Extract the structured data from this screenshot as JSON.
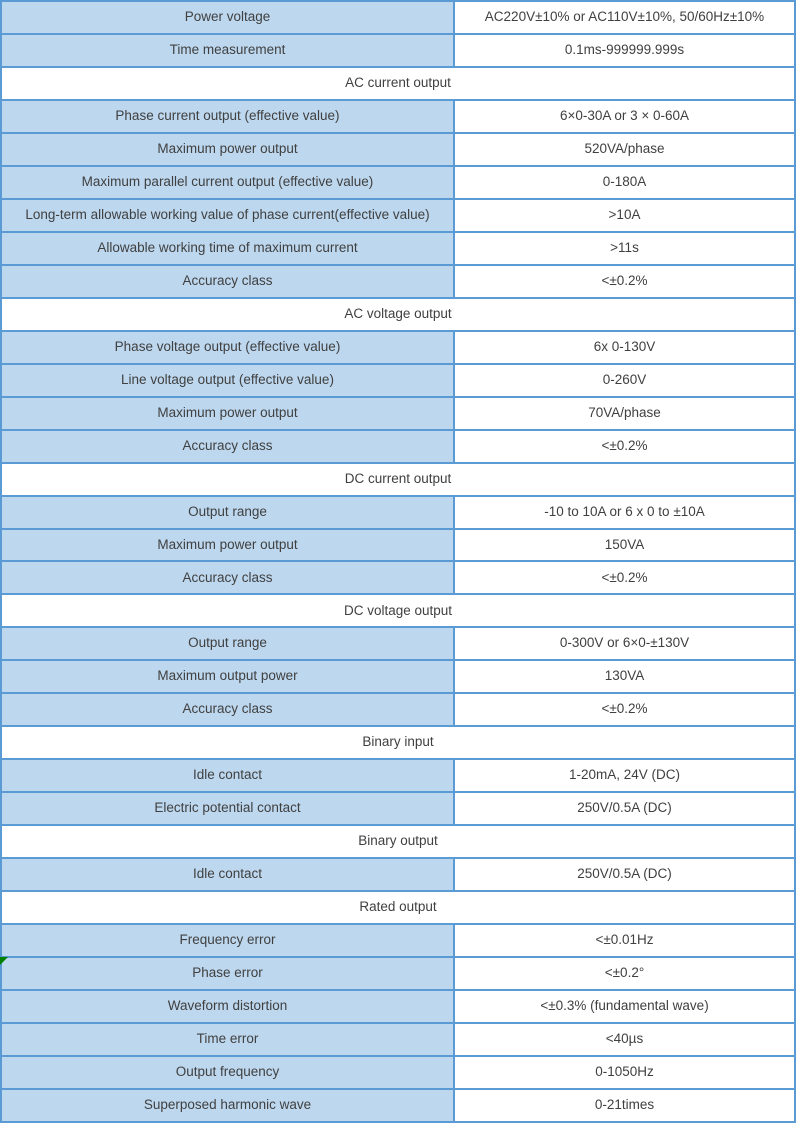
{
  "colors": {
    "accent_border": "#5b9bd5",
    "label_bg": "#bdd7ee",
    "value_bg": "#ffffff",
    "section_bg": "#ffffff",
    "text": "#404040",
    "marker_green": "#008000"
  },
  "table": {
    "rows": [
      {
        "type": "data",
        "label": "Power voltage",
        "value": "AC220V±10% or AC110V±10%, 50/60Hz±10%"
      },
      {
        "type": "data",
        "label": "Time measurement",
        "value": "0.1ms-999999.999s"
      },
      {
        "type": "section",
        "title": "AC current output"
      },
      {
        "type": "data",
        "label": "Phase current output (effective value)",
        "value": "6×0-30A or 3 × 0-60A"
      },
      {
        "type": "data",
        "label": "Maximum power output",
        "value": "520VA/phase"
      },
      {
        "type": "data",
        "label": "Maximum parallel current output (effective value)",
        "value": "0-180A"
      },
      {
        "type": "data",
        "label": "Long-term allowable working value of phase current(effective value)",
        "value": ">10A"
      },
      {
        "type": "data",
        "label": "Allowable working time of maximum current",
        "value": ">11s"
      },
      {
        "type": "data",
        "label": "Accuracy class",
        "value": "<±0.2%"
      },
      {
        "type": "section",
        "title": "AC voltage output"
      },
      {
        "type": "data",
        "label": "Phase voltage output (effective value)",
        "value": "6x 0-130V"
      },
      {
        "type": "data",
        "label": "Line voltage output (effective value)",
        "value": "0-260V"
      },
      {
        "type": "data",
        "label": "Maximum power output",
        "value": "70VA/phase"
      },
      {
        "type": "data",
        "label": "Accuracy class",
        "value": "<±0.2%"
      },
      {
        "type": "section",
        "title": "DC current output"
      },
      {
        "type": "data",
        "label": "Output range",
        "value": "-10 to 10A or 6 x 0 to ±10A"
      },
      {
        "type": "data",
        "label": "Maximum power output",
        "value": "150VA"
      },
      {
        "type": "data",
        "label": "Accuracy class",
        "value": "<±0.2%"
      },
      {
        "type": "section",
        "title": "DC voltage output"
      },
      {
        "type": "data",
        "label": "Output range",
        "value": "0-300V or 6×0-±130V"
      },
      {
        "type": "data",
        "label": "Maximum output power",
        "value": "130VA"
      },
      {
        "type": "data",
        "label": "Accuracy class",
        "value": "<±0.2%"
      },
      {
        "type": "section",
        "title": "Binary input"
      },
      {
        "type": "data",
        "label": "Idle contact",
        "value": "1-20mA, 24V (DC)"
      },
      {
        "type": "data",
        "label": "Electric potential contact",
        "value": "250V/0.5A (DC)"
      },
      {
        "type": "section",
        "title": "Binary output"
      },
      {
        "type": "data",
        "label": "Idle contact",
        "value": "250V/0.5A (DC)"
      },
      {
        "type": "section",
        "title": "Rated output"
      },
      {
        "type": "data",
        "label": "Frequency error",
        "value": "<±0.01Hz"
      },
      {
        "type": "data",
        "label": "Phase error",
        "value": "<±0.2°"
      },
      {
        "type": "data",
        "label": "Waveform distortion",
        "value": "<±0.3% (fundamental wave)"
      },
      {
        "type": "data",
        "label": "Time error",
        "value": "<40µs"
      },
      {
        "type": "data",
        "label": "Output frequency",
        "value": "0-1050Hz"
      },
      {
        "type": "data",
        "label": "Superposed harmonic wave",
        "value": "0-21times"
      }
    ]
  }
}
